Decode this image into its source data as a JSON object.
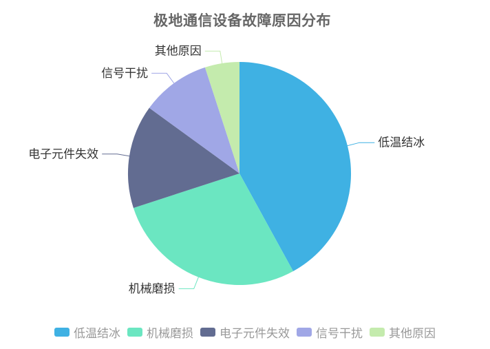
{
  "title": {
    "text": "极地通信设备故障原因分布"
  },
  "colors": {
    "background": "#ffffff",
    "title_text": "#666666",
    "label_text": "#333333",
    "legend_text": "#999999"
  },
  "chart_data": {
    "type": "pie",
    "title": "极地通信设备故障原因分布",
    "categories": [
      "低温结冰",
      "机械磨损",
      "电子元件失效",
      "信号干扰",
      "其他原因"
    ],
    "values": [
      42,
      28,
      15,
      10,
      5
    ],
    "value_unit": "percent-of-circle (estimated from slice angles; no numeric labels shown)",
    "palette": [
      "#3fb1e3",
      "#6be6c1",
      "#626c91",
      "#a0a7e6",
      "#c4ebad"
    ],
    "start_angle": "12 o'clock, clockwise",
    "legend_position": "bottom-center",
    "label_style": "outside labels with colored leader lines",
    "legend_entries": [
      "低温结冰",
      "机械磨损",
      "电子元件失效",
      "信号干扰",
      "其他原因"
    ]
  }
}
